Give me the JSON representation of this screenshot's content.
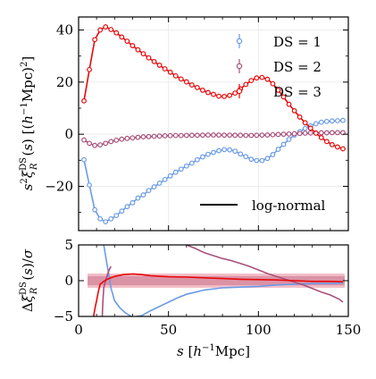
{
  "chart_data": [
    {
      "panel": "top",
      "type": "scatter",
      "xlabel": "s [h⁻¹Mpc]",
      "ylabel": "s²ξ_R^DS(s) [(h⁻¹Mpc)²]",
      "xlim": [
        0,
        150
      ],
      "ylim": [
        -37,
        45
      ],
      "xticks": [
        0,
        50,
        100,
        150
      ],
      "yticks": [
        -20,
        0,
        20,
        40
      ],
      "grid": true,
      "legend_position": "top-right",
      "legend_extra": "log-normal",
      "legend_extra_position": "bottom-right",
      "series": [
        {
          "name": "DS = 1",
          "color": "#6a9be6",
          "x": [
            3,
            6,
            9,
            12,
            15,
            18,
            21,
            24,
            27,
            30,
            33,
            36,
            39,
            42,
            45,
            48,
            51,
            54,
            57,
            60,
            63,
            66,
            69,
            72,
            75,
            78,
            81,
            84,
            87,
            90,
            93,
            96,
            99,
            102,
            105,
            108,
            111,
            114,
            117,
            120,
            123,
            126,
            129,
            132,
            135,
            138,
            141,
            144,
            147
          ],
          "y": [
            -9.8,
            -19.5,
            -29,
            -32.5,
            -33.6,
            -32.5,
            -31.2,
            -29.5,
            -27.8,
            -26.3,
            -24.5,
            -23.3,
            -21.6,
            -20.2,
            -18.8,
            -17.4,
            -16,
            -14.6,
            -13.4,
            -12.2,
            -11.1,
            -9.8,
            -8.7,
            -7.7,
            -7,
            -6.3,
            -5.9,
            -6,
            -6.5,
            -7.6,
            -8.6,
            -9.6,
            -10.1,
            -10.1,
            -9.3,
            -7.8,
            -5.8,
            -3.9,
            -2,
            -0.3,
            1,
            2.2,
            3.2,
            4,
            4.6,
            4.9,
            5.1,
            5.2,
            5.3
          ]
        },
        {
          "name": "DS = 2",
          "color": "#a8517a",
          "x": [
            3,
            6,
            9,
            12,
            15,
            18,
            21,
            24,
            27,
            30,
            33,
            36,
            39,
            42,
            45,
            48,
            51,
            54,
            57,
            60,
            63,
            66,
            69,
            72,
            75,
            78,
            81,
            84,
            87,
            90,
            93,
            96,
            99,
            102,
            105,
            108,
            111,
            114,
            117,
            120,
            123,
            126,
            129,
            132,
            135,
            138,
            141,
            144,
            147
          ],
          "y": [
            -2.2,
            -3.5,
            -4.3,
            -4.1,
            -3.5,
            -2.8,
            -2.3,
            -1.9,
            -1.6,
            -1.4,
            -1.2,
            -1.0,
            -0.9,
            -0.8,
            -0.7,
            -0.6,
            -0.55,
            -0.5,
            -0.5,
            -0.45,
            -0.4,
            -0.4,
            -0.35,
            -0.3,
            -0.3,
            -0.3,
            -0.35,
            -0.35,
            -0.4,
            -0.4,
            -0.45,
            -0.45,
            -0.4,
            -0.35,
            -0.3,
            -0.2,
            -0.1,
            0,
            0.1,
            0.2,
            0.3,
            0.4,
            0.45,
            0.5,
            0.55,
            0.55,
            0.6,
            0.6,
            0.6
          ]
        },
        {
          "name": "DS = 3",
          "color": "#e8080a",
          "x": [
            3,
            6,
            9,
            12,
            15,
            18,
            21,
            24,
            27,
            30,
            33,
            36,
            39,
            42,
            45,
            48,
            51,
            54,
            57,
            60,
            63,
            66,
            69,
            72,
            75,
            78,
            81,
            84,
            87,
            90,
            93,
            96,
            99,
            102,
            105,
            108,
            111,
            114,
            117,
            120,
            123,
            126,
            129,
            132,
            135,
            138,
            141,
            144,
            147
          ],
          "y": [
            12.8,
            24.8,
            36.3,
            40,
            41.2,
            40.2,
            38.9,
            37.3,
            35.7,
            34,
            32.4,
            30.9,
            29.3,
            27.9,
            26.5,
            25.1,
            23.8,
            22.4,
            21.2,
            20.1,
            18.9,
            17.9,
            16.9,
            16,
            15.3,
            14.6,
            14.5,
            14.9,
            15.8,
            17.4,
            19.1,
            20.6,
            21.6,
            21.8,
            21.1,
            19.4,
            16.9,
            14.3,
            11.5,
            9,
            6.6,
            4.4,
            2.3,
            0.4,
            -1.3,
            -2.8,
            -4,
            -4.9,
            -5.6
          ]
        }
      ]
    },
    {
      "panel": "bottom",
      "type": "line",
      "xlabel": "s [h⁻¹Mpc]",
      "ylabel": "Δξ_R^DS(s)/σ",
      "xlim": [
        0,
        150
      ],
      "ylim": [
        -5,
        5
      ],
      "xticks": [
        0,
        50,
        100,
        150
      ],
      "yticks": [
        -5,
        0,
        5
      ],
      "series": [
        {
          "name": "DS = 1",
          "color": "#6a9be6",
          "x": [
            12,
            13,
            14,
            16,
            18,
            20,
            23,
            26,
            30,
            35,
            40,
            45,
            50,
            55,
            60,
            65,
            70,
            80,
            90,
            100,
            110,
            120,
            130,
            140,
            147
          ],
          "y": [
            6,
            8,
            5,
            2,
            -1,
            -2.8,
            -3.8,
            -4.5,
            -5.1,
            -4.9,
            -4.2,
            -3.6,
            -3.0,
            -2.4,
            -1.9,
            -1.6,
            -1.3,
            -1.0,
            -0.9,
            -0.8,
            -0.6,
            -0.5,
            -0.4,
            -0.4,
            -0.3
          ]
        },
        {
          "name": "DS = 2",
          "color": "#a8517a",
          "x": [
            13,
            13.5,
            14,
            15,
            16,
            17,
            18,
            55,
            60,
            65,
            70,
            75,
            80,
            85,
            90,
            95,
            100,
            105,
            110,
            115,
            120,
            125,
            130,
            135,
            140,
            145,
            147
          ],
          "y": [
            -6,
            -3,
            -1,
            0,
            0.8,
            1.5,
            2,
            6,
            5,
            4.5,
            3.9,
            3.5,
            3.1,
            2.8,
            2.4,
            2.0,
            1.5,
            1.0,
            0.6,
            0.2,
            -0.2,
            -0.6,
            -1.1,
            -1.6,
            -2.0,
            -2.6,
            -3
          ]
        },
        {
          "name": "DS = 3",
          "color": "#e8080a",
          "x": [
            8,
            9,
            10,
            11,
            12,
            14,
            16,
            18,
            20,
            25,
            30,
            35,
            40,
            50,
            60,
            70,
            80,
            90,
            100,
            110,
            120,
            130,
            140,
            147
          ],
          "y": [
            -5.5,
            -4,
            -2.8,
            -1.5,
            -0.5,
            -0.1,
            0.2,
            0.4,
            0.6,
            0.85,
            0.95,
            0.85,
            0.7,
            0.55,
            0.5,
            0.4,
            0.3,
            0.2,
            0.15,
            0.1,
            0.0,
            -0.1,
            -0.1,
            -0.15
          ]
        }
      ],
      "bands": [
        {
          "color": "#e88a9a",
          "lower": -1,
          "upper": 1,
          "xlim": [
            5,
            148
          ]
        },
        {
          "color": "#c8708a",
          "lower": -0.65,
          "upper": 0.65,
          "xlim": [
            5,
            148
          ]
        }
      ]
    }
  ],
  "legend": {
    "entries": [
      "DS = 1",
      "DS = 2",
      "DS = 3"
    ],
    "extra": "log-normal"
  },
  "colors": {
    "ds1": "#6a9be6",
    "ds2": "#a8517a",
    "ds3": "#e8080a",
    "model": "#000000"
  }
}
